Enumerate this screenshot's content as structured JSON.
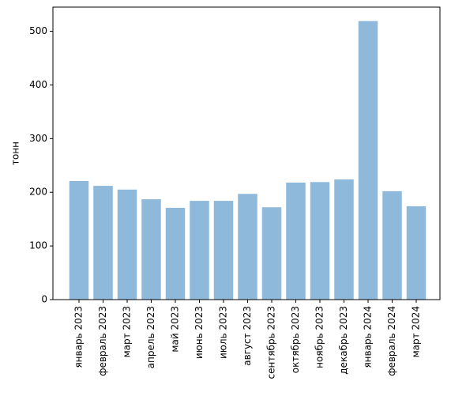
{
  "chart_data": {
    "type": "bar",
    "title": "",
    "xlabel": "",
    "ylabel": "тонн",
    "categories": [
      "январь 2023",
      "февраль 2023",
      "март 2023",
      "апрель 2023",
      "май 2023",
      "июнь 2023",
      "июль 2023",
      "август 2023",
      "сентябрь 2023",
      "октябрь 2023",
      "ноябрь 2023",
      "декабрь 2023",
      "январь 2024",
      "февраль 2024",
      "март 2024"
    ],
    "values": [
      221,
      212,
      205,
      187,
      171,
      184,
      184,
      197,
      172,
      218,
      219,
      224,
      519,
      202,
      174
    ],
    "ylim": [
      0,
      545
    ],
    "yticks": [
      0,
      100,
      200,
      300,
      400,
      500
    ],
    "grid": false,
    "bar_color": "#8fb9da"
  }
}
